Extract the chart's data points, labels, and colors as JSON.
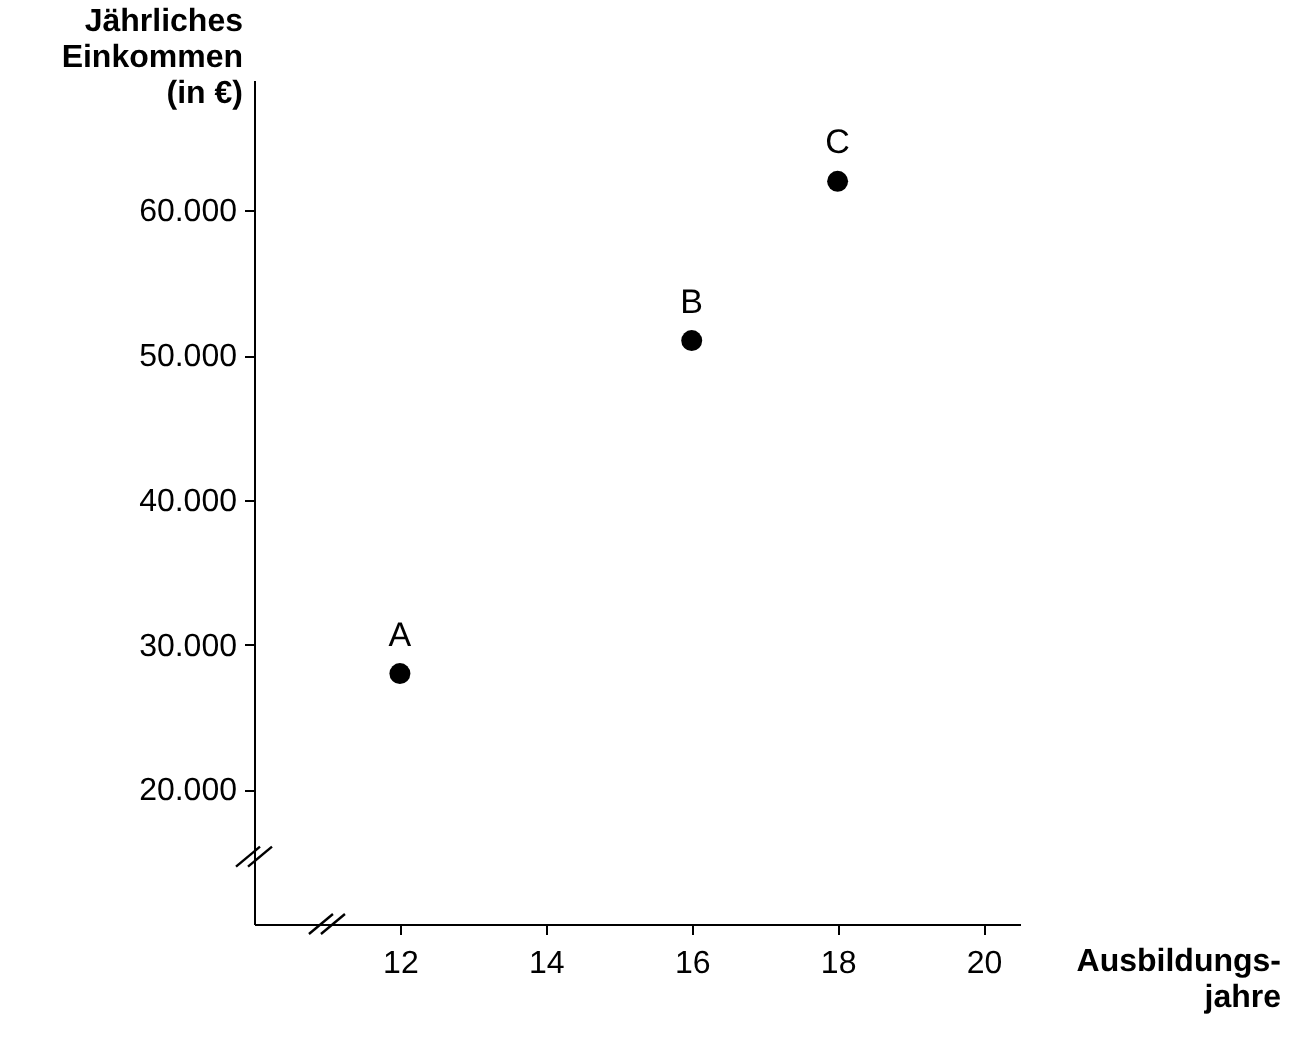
{
  "chart_data": {
    "type": "scatter",
    "xlabel": "Ausbildungs-\njahre",
    "ylabel": "Jährliches\nEinkommen\n(in €)",
    "x": [
      12,
      16,
      18
    ],
    "values": [
      28000,
      51000,
      62000
    ],
    "color": "#000000",
    "marker": "circle",
    "xlim": [
      10,
      20.5
    ],
    "xticks": [
      12,
      14,
      16,
      18,
      20
    ],
    "ylim": [
      10700,
      69000
    ],
    "yticks": [
      {
        "value": 20000,
        "label": "20.000"
      },
      {
        "value": 30000,
        "label": "30.000"
      },
      {
        "value": 40000,
        "label": "40.000"
      },
      {
        "value": 50000,
        "label": "50.000"
      },
      {
        "value": 60000,
        "label": "60.000"
      }
    ],
    "annotations": [
      {
        "text": "A",
        "x": 12,
        "y": 28000
      },
      {
        "text": "B",
        "x": 16,
        "y": 51000
      },
      {
        "text": "C",
        "x": 18,
        "y": 62000
      }
    ],
    "grid": false
  }
}
